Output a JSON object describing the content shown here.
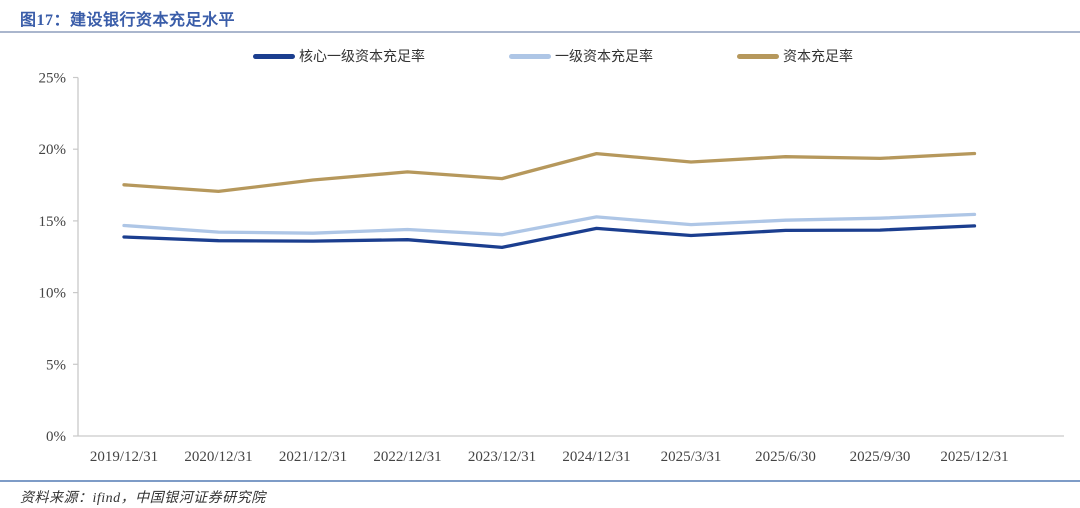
{
  "header": {
    "title": "图17：建设银行资本充足水平"
  },
  "source": {
    "label": "资料来源：ifind，中国银河证券研究院"
  },
  "chart_data": {
    "type": "line",
    "title": "建设银行资本充足水平",
    "categories": [
      "2019/12/31",
      "2020/12/31",
      "2021/12/31",
      "2022/12/31",
      "2023/12/31",
      "2024/12/31",
      "2025/3/31",
      "2025/6/30",
      "2025/9/30",
      "2025/12/31"
    ],
    "series": [
      {
        "name": "核心一级资本充足率",
        "color": "#1b3e8f",
        "values": [
          13.88,
          13.62,
          13.59,
          13.69,
          13.15,
          14.48,
          13.98,
          14.34,
          14.36,
          14.65
        ]
      },
      {
        "name": "一级资本充足率",
        "color": "#aec6e6",
        "values": [
          14.68,
          14.22,
          14.14,
          14.4,
          14.04,
          15.28,
          14.74,
          15.05,
          15.19,
          15.45
        ]
      },
      {
        "name": "资本充足率",
        "color": "#b6985c",
        "values": [
          17.52,
          17.06,
          17.85,
          18.42,
          17.95,
          19.69,
          19.11,
          19.48,
          19.36,
          19.7
        ]
      }
    ],
    "xlabel": "",
    "ylabel": "",
    "ylim": [
      0,
      25
    ],
    "y_ticks": [
      "0%",
      "5%",
      "10%",
      "15%",
      "20%",
      "25%"
    ],
    "y_tick_values": [
      0,
      5,
      10,
      15,
      20,
      25
    ],
    "grid": false,
    "legend_position": "top"
  },
  "colors": {
    "title_text": "#3a5da9",
    "axis_line": "#c9c9c9",
    "tick_text": "#444444",
    "top_rule": "#aab6cd",
    "bottom_rule": "#7e9cc7"
  }
}
